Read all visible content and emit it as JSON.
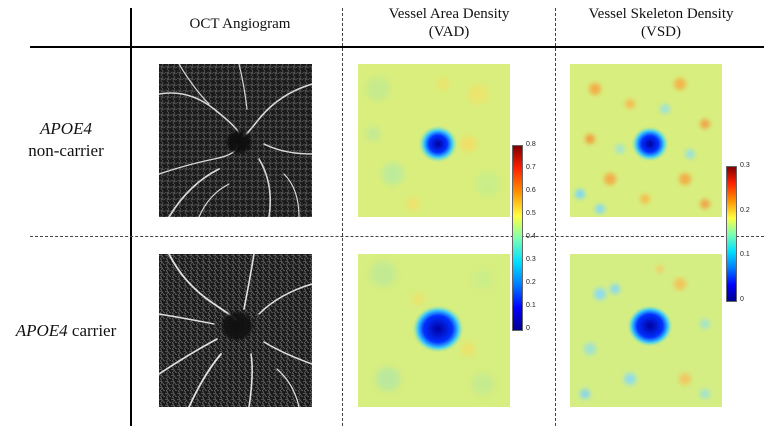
{
  "header": {
    "col1": "OCT Angiogram",
    "col2_line1": "Vessel Area Density",
    "col2_line2": "(VAD)",
    "col3_line1": "Vessel Skeleton Density",
    "col3_line2": "(VSD)"
  },
  "rows": [
    {
      "label_italic": "APOE4",
      "label_rest": "non-carrier"
    },
    {
      "label_italic": "APOE4",
      "label_rest": " carrier"
    }
  ],
  "colorbars": {
    "vad": {
      "ticks": [
        "0.8",
        "0.7",
        "0.6",
        "0.5",
        "0.4",
        "0.3",
        "0.2",
        "0.1",
        "0"
      ]
    },
    "vsd": {
      "ticks": [
        "0.3",
        "0.2",
        "0.1",
        "0"
      ]
    }
  },
  "colors": {
    "jet_low": "#00008f",
    "jet_mid": "#a6f2a6",
    "jet_high": "#800000",
    "background_yellow": "#dcee7a"
  }
}
